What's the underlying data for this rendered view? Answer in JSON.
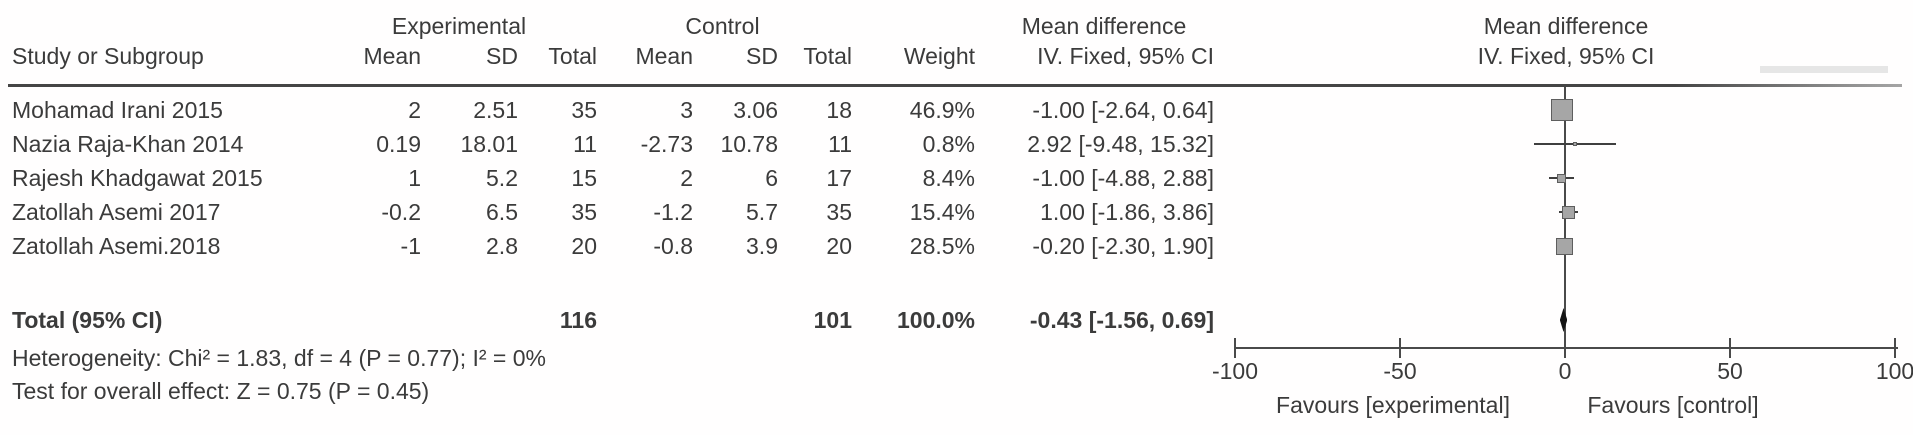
{
  "header": {
    "study_col": "Study or Subgroup",
    "group_experimental": "Experimental",
    "group_control": "Control",
    "effect_line1": "Mean difference",
    "effect_line2": "IV. Fixed, 95% CI",
    "plot_line1": "Mean difference",
    "plot_line2": "IV. Fixed, 95% CI",
    "sub_mean": "Mean",
    "sub_sd": "SD",
    "sub_total": "Total",
    "sub_weight": "Weight"
  },
  "rows": [
    {
      "study": "Mohamad Irani 2015",
      "exp_mean": "2",
      "exp_sd": "2.51",
      "exp_total": "35",
      "ctrl_mean": "3",
      "ctrl_sd": "3.06",
      "ctrl_total": "18",
      "weight": "46.9%",
      "ci": "-1.00 [-2.64, 0.64]"
    },
    {
      "study": "Nazia Raja-Khan 2014",
      "exp_mean": "0.19",
      "exp_sd": "18.01",
      "exp_total": "11",
      "ctrl_mean": "-2.73",
      "ctrl_sd": "10.78",
      "ctrl_total": "11",
      "weight": "0.8%",
      "ci": "2.92 [-9.48, 15.32]"
    },
    {
      "study": "Rajesh Khadgawat 2015",
      "exp_mean": "1",
      "exp_sd": "5.2",
      "exp_total": "15",
      "ctrl_mean": "2",
      "ctrl_sd": "6",
      "ctrl_total": "17",
      "weight": "8.4%",
      "ci": "-1.00 [-4.88, 2.88]"
    },
    {
      "study": "Zatollah Asemi 2017",
      "exp_mean": "-0.2",
      "exp_sd": "6.5",
      "exp_total": "35",
      "ctrl_mean": "-1.2",
      "ctrl_sd": "5.7",
      "ctrl_total": "35",
      "weight": "15.4%",
      "ci": "1.00 [-1.86, 3.86]"
    },
    {
      "study": "Zatollah Asemi.2018",
      "exp_mean": "-1",
      "exp_sd": "2.8",
      "exp_total": "20",
      "ctrl_mean": "-0.8",
      "ctrl_sd": "3.9",
      "ctrl_total": "20",
      "weight": "28.5%",
      "ci": "-0.20 [-2.30, 1.90]"
    }
  ],
  "total": {
    "label": "Total (95% CI)",
    "exp_total": "116",
    "ctrl_total": "101",
    "weight": "100.0%",
    "ci": "-0.43 [-1.56, 0.69]"
  },
  "footer": {
    "heterogeneity": "Heterogeneity: Chi² = 1.83, df = 4 (P = 0.77); I² = 0%",
    "overall_effect": "Test for overall effect: Z = 0.75 (P = 0.45)"
  },
  "axis": {
    "favours_left": "Favours [experimental]",
    "favours_right": "Favours [control]"
  },
  "colors": {
    "text": "#3b3b3b",
    "square_fill": "#a6a6a6",
    "square_border": "#5e5e5e",
    "ci_line": "#3f3f3f",
    "diamond": "#141414",
    "axis": "#4a4a4a"
  },
  "chart_data": {
    "type": "forest",
    "effect_measure": "Mean difference",
    "model": "IV. Fixed, 95% CI",
    "studies": [
      {
        "name": "Mohamad Irani 2015",
        "md": -1.0,
        "ci_low": -2.64,
        "ci_high": 0.64,
        "weight_pct": 46.9
      },
      {
        "name": "Nazia Raja-Khan 2014",
        "md": 2.92,
        "ci_low": -9.48,
        "ci_high": 15.32,
        "weight_pct": 0.8
      },
      {
        "name": "Rajesh Khadgawat 2015",
        "md": -1.0,
        "ci_low": -4.88,
        "ci_high": 2.88,
        "weight_pct": 8.4
      },
      {
        "name": "Zatollah Asemi 2017",
        "md": 1.0,
        "ci_low": -1.86,
        "ci_high": 3.86,
        "weight_pct": 15.4
      },
      {
        "name": "Zatollah Asemi.2018",
        "md": -0.2,
        "ci_low": -2.3,
        "ci_high": 1.9,
        "weight_pct": 28.5
      }
    ],
    "total": {
      "md": -0.43,
      "ci_low": -1.56,
      "ci_high": 0.69,
      "weight_pct": 100.0
    },
    "xlim": [
      -100,
      100
    ],
    "x_ticks": [
      -100,
      -50,
      0,
      50,
      100
    ],
    "heterogeneity": {
      "chi2": 1.83,
      "df": 4,
      "p": 0.77,
      "i2_pct": 0
    },
    "overall_effect": {
      "z": 0.75,
      "p": 0.45
    },
    "legend_left": "Favours [experimental]",
    "legend_right": "Favours [control]"
  }
}
